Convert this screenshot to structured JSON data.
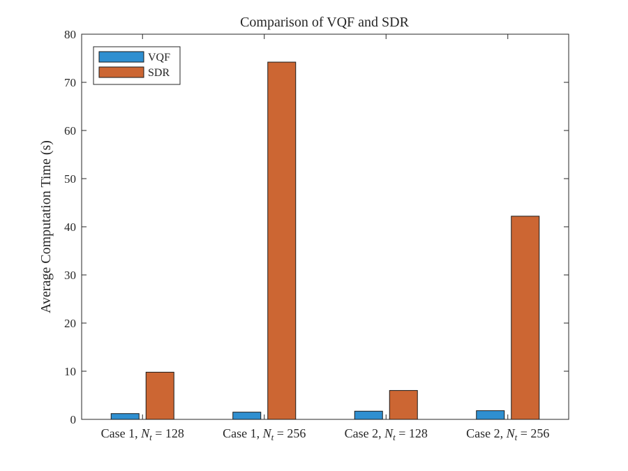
{
  "chart_data": {
    "type": "bar",
    "title": "Comparison of VQF and SDR",
    "xlabel": "",
    "ylabel": "Average Computation Time (s)",
    "ylim": [
      0,
      80
    ],
    "yticks": [
      0,
      10,
      20,
      30,
      40,
      50,
      60,
      70,
      80
    ],
    "categories": [
      {
        "prefix": "Case 1, ",
        "var": "N",
        "sub": "t",
        "suffix": " = 128"
      },
      {
        "prefix": "Case 1, ",
        "var": "N",
        "sub": "t",
        "suffix": " = 256"
      },
      {
        "prefix": "Case 2, ",
        "var": "N",
        "sub": "t",
        "suffix": " = 128"
      },
      {
        "prefix": "Case 2, ",
        "var": "N",
        "sub": "t",
        "suffix": " = 256"
      }
    ],
    "series": [
      {
        "name": "VQF",
        "color": "#2f8fd0",
        "values": [
          1.2,
          1.5,
          1.7,
          1.8
        ]
      },
      {
        "name": "SDR",
        "color": "#cc6633",
        "values": [
          9.8,
          74.2,
          6.0,
          42.2
        ]
      }
    ],
    "legend": "top-left",
    "grid": false
  }
}
